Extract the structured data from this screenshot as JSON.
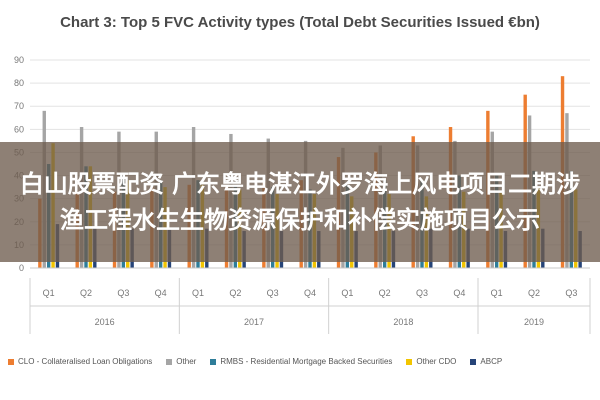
{
  "chart_data": {
    "type": "bar",
    "title": "Chart 3: Top 5 FVC Activity types (Total Debt Securities Issued €bn)",
    "ylim": [
      0,
      90
    ],
    "yticks": [
      "0",
      "10",
      "20",
      "30",
      "40",
      "50",
      "60",
      "70",
      "80",
      "90"
    ],
    "grid": true,
    "legend_position": "bottom",
    "categories": [
      "Q1",
      "Q2",
      "Q3",
      "Q4",
      "Q1",
      "Q2",
      "Q3",
      "Q4",
      "Q1",
      "Q2",
      "Q3",
      "Q4",
      "Q1",
      "Q2",
      "Q3"
    ],
    "years": [
      "2016",
      "2017",
      "2018",
      "2019"
    ],
    "year_spans": [
      [
        0,
        3
      ],
      [
        4,
        7
      ],
      [
        8,
        11
      ],
      [
        12,
        14
      ]
    ],
    "series": [
      {
        "name": "CLO - Collateralised Loan Obligations",
        "color": "#ed7d31",
        "values": [
          30,
          33,
          33,
          35,
          36,
          36,
          37,
          38,
          48,
          50,
          57,
          61,
          68,
          75,
          83
        ]
      },
      {
        "name": "Other",
        "color": "#a5a5a5",
        "values": [
          68,
          61,
          59,
          59,
          61,
          58,
          56,
          55,
          52,
          53,
          53,
          55,
          59,
          66,
          67
        ]
      },
      {
        "name": "RMBS - Residential Mortgage Backed Securities",
        "color": "#2e7d99",
        "values": [
          45,
          44,
          40,
          38,
          38,
          36,
          35,
          34,
          36,
          38,
          38,
          40,
          40,
          42,
          42
        ]
      },
      {
        "name": "Other CDO",
        "color": "#f2c500",
        "values": [
          54,
          44,
          38,
          35,
          36,
          34,
          32,
          32,
          31,
          32,
          31,
          33,
          33,
          35,
          34
        ]
      },
      {
        "name": "ABCP",
        "color": "#264478",
        "values": [
          19,
          18,
          17,
          17,
          17,
          16,
          16,
          16,
          16,
          16,
          17,
          17,
          16,
          17,
          16
        ]
      }
    ]
  },
  "banner": {
    "text": "白山股票配资 广东粤电湛江外罗海上风电项目二期涉渔工程水生生物资源保护和补偿实施项目公示"
  }
}
